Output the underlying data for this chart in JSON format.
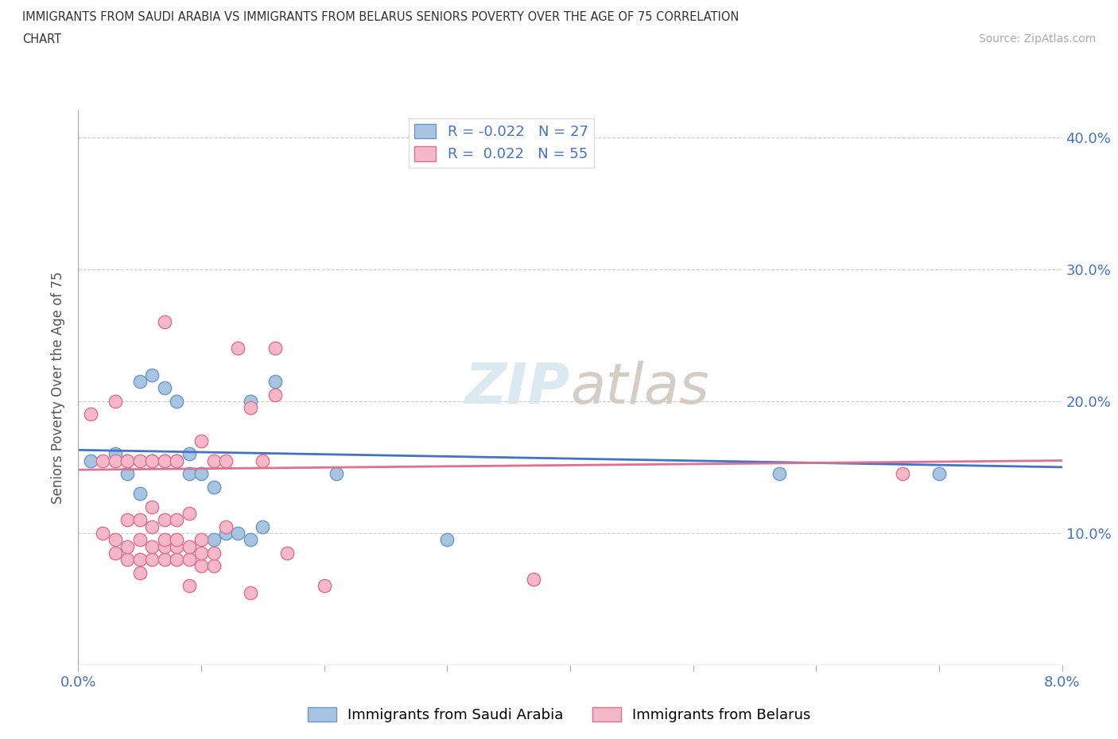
{
  "title_line1": "IMMIGRANTS FROM SAUDI ARABIA VS IMMIGRANTS FROM BELARUS SENIORS POVERTY OVER THE AGE OF 75 CORRELATION",
  "title_line2": "CHART",
  "source": "Source: ZipAtlas.com",
  "ylabel": "Seniors Poverty Over the Age of 75",
  "xlim": [
    0.0,
    0.08
  ],
  "ylim": [
    0.0,
    0.42
  ],
  "xticks": [
    0.0,
    0.01,
    0.02,
    0.03,
    0.04,
    0.05,
    0.06,
    0.07,
    0.08
  ],
  "yticks": [
    0.0,
    0.1,
    0.2,
    0.3,
    0.4
  ],
  "saudi_color": "#a8c4e0",
  "saudi_edge": "#6699cc",
  "belarus_color": "#f4b8c8",
  "belarus_edge": "#e07090",
  "saudi_R": -0.022,
  "saudi_N": 27,
  "belarus_R": 0.022,
  "belarus_N": 55,
  "trend_saudi_color": "#4472c4",
  "trend_belarus_color": "#e07090",
  "grid_color": "#cccccc",
  "bg_color": "#ffffff",
  "saudi_x": [
    0.001,
    0.003,
    0.004,
    0.004,
    0.005,
    0.005,
    0.006,
    0.006,
    0.007,
    0.007,
    0.008,
    0.008,
    0.009,
    0.009,
    0.01,
    0.011,
    0.011,
    0.012,
    0.013,
    0.014,
    0.014,
    0.015,
    0.016,
    0.021,
    0.03,
    0.057,
    0.07
  ],
  "saudi_y": [
    0.155,
    0.16,
    0.145,
    0.155,
    0.13,
    0.215,
    0.155,
    0.22,
    0.155,
    0.21,
    0.2,
    0.155,
    0.145,
    0.16,
    0.145,
    0.135,
    0.095,
    0.1,
    0.1,
    0.095,
    0.2,
    0.105,
    0.215,
    0.145,
    0.095,
    0.145,
    0.145
  ],
  "belarus_x": [
    0.001,
    0.002,
    0.002,
    0.003,
    0.003,
    0.003,
    0.003,
    0.004,
    0.004,
    0.004,
    0.004,
    0.005,
    0.005,
    0.005,
    0.005,
    0.005,
    0.006,
    0.006,
    0.006,
    0.006,
    0.006,
    0.007,
    0.007,
    0.007,
    0.007,
    0.007,
    0.007,
    0.008,
    0.008,
    0.008,
    0.008,
    0.008,
    0.009,
    0.009,
    0.009,
    0.009,
    0.01,
    0.01,
    0.01,
    0.01,
    0.011,
    0.011,
    0.011,
    0.012,
    0.012,
    0.013,
    0.014,
    0.014,
    0.015,
    0.016,
    0.016,
    0.017,
    0.02,
    0.037,
    0.067
  ],
  "belarus_y": [
    0.19,
    0.1,
    0.155,
    0.085,
    0.095,
    0.155,
    0.2,
    0.08,
    0.09,
    0.11,
    0.155,
    0.07,
    0.08,
    0.095,
    0.11,
    0.155,
    0.08,
    0.09,
    0.105,
    0.12,
    0.155,
    0.08,
    0.09,
    0.095,
    0.11,
    0.155,
    0.26,
    0.08,
    0.09,
    0.095,
    0.11,
    0.155,
    0.06,
    0.08,
    0.09,
    0.115,
    0.075,
    0.085,
    0.095,
    0.17,
    0.075,
    0.085,
    0.155,
    0.105,
    0.155,
    0.24,
    0.055,
    0.195,
    0.155,
    0.205,
    0.24,
    0.085,
    0.06,
    0.065,
    0.145
  ]
}
